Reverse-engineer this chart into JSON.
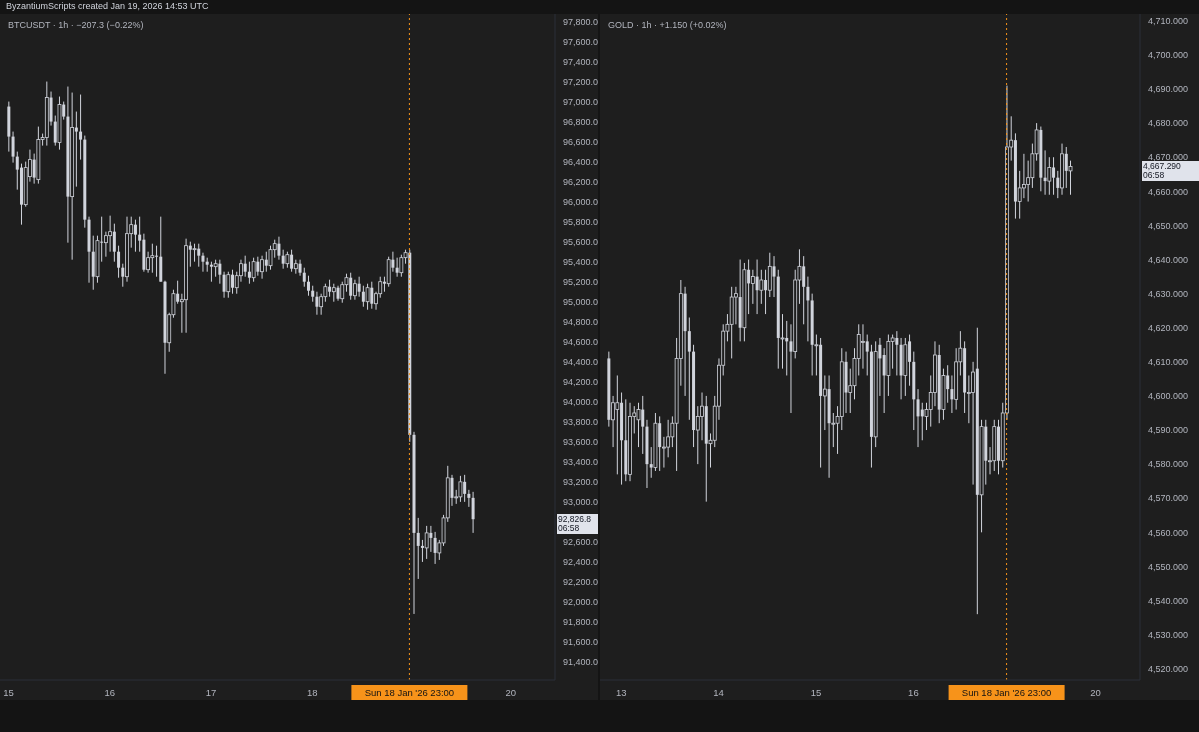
{
  "chart_data": [
    {
      "type": "candlestick",
      "title": "BTCUSDT · 1h · −207.3 (−0.22%)",
      "subtitle": "ByzantiumScripts created Jan 19, 2026 14:53 UTC",
      "color": "#d1d4dc",
      "categories": [
        "15",
        null,
        null,
        null,
        null,
        null,
        null,
        null,
        null,
        null,
        null,
        null,
        null,
        null,
        null,
        null,
        null,
        null,
        null,
        null,
        null,
        null,
        null,
        null,
        "16",
        null,
        null,
        null,
        null,
        null,
        null,
        null,
        null,
        null,
        null,
        null,
        null,
        null,
        null,
        null,
        null,
        null,
        null,
        null,
        null,
        null,
        null,
        null,
        "17",
        null,
        null,
        null,
        null,
        null,
        null,
        null,
        null,
        null,
        null,
        null,
        null,
        null,
        null,
        null,
        null,
        null,
        null,
        null,
        null,
        null,
        null,
        null,
        "18",
        null,
        null,
        null,
        null,
        null,
        null,
        null,
        null,
        null,
        null,
        null,
        null,
        null,
        null,
        null,
        null,
        null,
        null,
        null,
        null,
        null,
        null,
        "Sun 18 Jan '26 23:00",
        null,
        null,
        null,
        null,
        null,
        null,
        null,
        null,
        null,
        null,
        null,
        null,
        null,
        null,
        null,
        null,
        null,
        null,
        null,
        null,
        null,
        null,
        null,
        "20",
        null,
        null,
        null,
        null,
        null,
        null,
        null,
        null,
        null,
        null
      ],
      "ohlc": [
        [
          96950,
          97000,
          96500,
          96650
        ],
        [
          96650,
          96700,
          96390,
          96450
        ],
        [
          96450,
          96500,
          96120,
          96320
        ],
        [
          96340,
          96380,
          95770,
          95970
        ],
        [
          95970,
          96400,
          95950,
          96340
        ],
        [
          96250,
          96520,
          96200,
          96420
        ],
        [
          96420,
          96480,
          96180,
          96240
        ],
        [
          96220,
          96750,
          96180,
          96620
        ],
        [
          96620,
          96680,
          96560,
          96640
        ],
        [
          96640,
          97200,
          96560,
          97040
        ],
        [
          97040,
          97100,
          96760,
          96800
        ],
        [
          96800,
          96860,
          96560,
          96590
        ],
        [
          96590,
          97050,
          96520,
          96970
        ],
        [
          96970,
          97000,
          96820,
          96850
        ],
        [
          96850,
          97150,
          95590,
          96050
        ],
        [
          96050,
          97090,
          95420,
          96740
        ],
        [
          96740,
          96900,
          96150,
          96700
        ],
        [
          96700,
          97070,
          96420,
          96620
        ],
        [
          96620,
          96660,
          95740,
          95820
        ],
        [
          95820,
          95850,
          95190,
          95500
        ],
        [
          95500,
          95660,
          95120,
          95250
        ],
        [
          95250,
          95660,
          95190,
          95610
        ],
        [
          95600,
          95850,
          95400,
          95590
        ],
        [
          95590,
          95700,
          95450,
          95660
        ],
        [
          95660,
          95860,
          95500,
          95700
        ],
        [
          95700,
          95780,
          95400,
          95500
        ],
        [
          95500,
          95560,
          95240,
          95340
        ],
        [
          95340,
          95380,
          95150,
          95250
        ],
        [
          95250,
          95850,
          95200,
          95680
        ],
        [
          95680,
          95850,
          95540,
          95770
        ],
        [
          95770,
          95820,
          95500,
          95670
        ],
        [
          95670,
          95850,
          95500,
          95610
        ],
        [
          95620,
          95680,
          95300,
          95320
        ],
        [
          95320,
          95500,
          95290,
          95440
        ],
        [
          95440,
          95580,
          95290,
          95460
        ],
        [
          95460,
          95560,
          95250,
          95450
        ],
        [
          95450,
          95850,
          95200,
          95200
        ],
        [
          95200,
          95210,
          94280,
          94590
        ],
        [
          94590,
          94890,
          94500,
          94870
        ],
        [
          94870,
          95120,
          94840,
          95080
        ],
        [
          95080,
          95210,
          94980,
          95000
        ],
        [
          95000,
          95080,
          94690,
          95020
        ],
        [
          95020,
          95630,
          94690,
          95560
        ],
        [
          95560,
          95600,
          95350,
          95520
        ],
        [
          95520,
          95580,
          95400,
          95530
        ],
        [
          95530,
          95580,
          95350,
          95460
        ],
        [
          95460,
          95490,
          95300,
          95400
        ],
        [
          95400,
          95440,
          95300,
          95370
        ],
        [
          95370,
          95400,
          95200,
          95350
        ],
        [
          95350,
          95420,
          95250,
          95380
        ],
        [
          95380,
          95420,
          95180,
          95270
        ],
        [
          95270,
          95300,
          95040,
          95100
        ],
        [
          95100,
          95300,
          95040,
          95270
        ],
        [
          95270,
          95320,
          95080,
          95140
        ],
        [
          95140,
          95300,
          95080,
          95260
        ],
        [
          95260,
          95420,
          95200,
          95380
        ],
        [
          95380,
          95460,
          95250,
          95300
        ],
        [
          95300,
          95400,
          95180,
          95240
        ],
        [
          95240,
          95440,
          95200,
          95400
        ],
        [
          95400,
          95450,
          95260,
          95300
        ],
        [
          95300,
          95460,
          95230,
          95420
        ],
        [
          95420,
          95500,
          95300,
          95360
        ],
        [
          95360,
          95560,
          95320,
          95520
        ],
        [
          95520,
          95620,
          95440,
          95580
        ],
        [
          95580,
          95650,
          95420,
          95460
        ],
        [
          95460,
          95520,
          95330,
          95380
        ],
        [
          95380,
          95500,
          95340,
          95470
        ],
        [
          95470,
          95520,
          95300,
          95330
        ],
        [
          95330,
          95420,
          95280,
          95380
        ],
        [
          95380,
          95420,
          95260,
          95290
        ],
        [
          95290,
          95340,
          95150,
          95200
        ],
        [
          95200,
          95260,
          95060,
          95110
        ],
        [
          95110,
          95160,
          95000,
          95050
        ],
        [
          95050,
          95100,
          94870,
          94950
        ],
        [
          94950,
          95080,
          94870,
          95050
        ],
        [
          95050,
          95180,
          95000,
          95150
        ],
        [
          95150,
          95220,
          95050,
          95100
        ],
        [
          95100,
          95180,
          95000,
          95140
        ],
        [
          95140,
          95160,
          95010,
          95030
        ],
        [
          95030,
          95200,
          94990,
          95170
        ],
        [
          95170,
          95280,
          95100,
          95240
        ],
        [
          95240,
          95290,
          95020,
          95060
        ],
        [
          95060,
          95220,
          95020,
          95180
        ],
        [
          95180,
          95250,
          95050,
          95100
        ],
        [
          95100,
          95160,
          94950,
          95000
        ],
        [
          95000,
          95180,
          94920,
          95140
        ],
        [
          95140,
          95200,
          94930,
          94980
        ],
        [
          94980,
          95100,
          94920,
          95080
        ],
        [
          95080,
          95250,
          95040,
          95200
        ],
        [
          95200,
          95250,
          95100,
          95180
        ],
        [
          95180,
          95450,
          95150,
          95420
        ],
        [
          95420,
          95500,
          95300,
          95340
        ],
        [
          95340,
          95440,
          95250,
          95290
        ],
        [
          95290,
          95470,
          95250,
          95440
        ],
        [
          95440,
          95520,
          95380,
          95490
        ],
        [
          95490,
          95520,
          93600,
          93670
        ],
        [
          93670,
          93700,
          91880,
          92690
        ],
        [
          92690,
          92840,
          92230,
          92560
        ],
        [
          92560,
          92620,
          92400,
          92540
        ],
        [
          92540,
          92760,
          92430,
          92690
        ],
        [
          92690,
          92760,
          92500,
          92640
        ],
        [
          92640,
          92700,
          92380,
          92490
        ],
        [
          92490,
          92620,
          92420,
          92590
        ],
        [
          92590,
          92870,
          92560,
          92840
        ],
        [
          92840,
          93360,
          92800,
          93240
        ],
        [
          93240,
          93270,
          92960,
          93040
        ],
        [
          93040,
          93120,
          92980,
          93050
        ],
        [
          93050,
          93260,
          93000,
          93200
        ],
        [
          93200,
          93270,
          93000,
          93080
        ],
        [
          93080,
          93120,
          92950,
          93040
        ],
        [
          93040,
          93100,
          92690,
          92826.8
        ],
        null,
        null,
        null,
        null,
        null,
        null,
        null,
        null,
        null,
        null,
        null,
        null,
        null,
        null,
        null,
        null,
        null,
        null,
        null
      ],
      "ylim": [
        91220,
        97875
      ],
      "yticks": [
        {
          "value": 91400,
          "label": "91,400.0"
        },
        {
          "value": 91600,
          "label": "91,600.0"
        },
        {
          "value": 91800,
          "label": "91,800.0"
        },
        {
          "value": 92000,
          "label": "92,000.0"
        },
        {
          "value": 92200,
          "label": "92,200.0"
        },
        {
          "value": 92400,
          "label": "92,400.0"
        },
        {
          "value": 92600,
          "label": "92,600.0"
        },
        {
          "value": 93000,
          "label": "93,000.0"
        },
        {
          "value": 93200,
          "label": "93,200.0"
        },
        {
          "value": 93400,
          "label": "93,400.0"
        },
        {
          "value": 93600,
          "label": "93,600.0"
        },
        {
          "value": 93800,
          "label": "93,800.0"
        },
        {
          "value": 94000,
          "label": "94,000.0"
        },
        {
          "value": 94200,
          "label": "94,200.0"
        },
        {
          "value": 94400,
          "label": "94,400.0"
        },
        {
          "value": 94600,
          "label": "94,600.0"
        },
        {
          "value": 94800,
          "label": "94,800.0"
        },
        {
          "value": 95000,
          "label": "95,000.0"
        },
        {
          "value": 95200,
          "label": "95,200.0"
        },
        {
          "value": 95400,
          "label": "95,400.0"
        },
        {
          "value": 95600,
          "label": "95,600.0"
        },
        {
          "value": 95800,
          "label": "95,800.0"
        },
        {
          "value": 96000,
          "label": "96,000.0"
        },
        {
          "value": 96200,
          "label": "96,200.0"
        },
        {
          "value": 96400,
          "label": "96,400.0"
        },
        {
          "value": 96600,
          "label": "96,600.0"
        },
        {
          "value": 96800,
          "label": "96,800.0"
        },
        {
          "value": 97000,
          "label": "97,000.0"
        },
        {
          "value": 97200,
          "label": "97,200.0"
        },
        {
          "value": 97400,
          "label": "97,400.0"
        },
        {
          "value": 97600,
          "label": "97,600.0"
        },
        {
          "value": 97800,
          "label": "97,800.0"
        }
      ],
      "ref_lines": [
        {
          "axis": "x",
          "value": "Sun 18 Jan '26 23:00",
          "color": "#f7931a",
          "line_style": "dotted"
        }
      ],
      "annotations": [
        "92,826.8",
        "06:58"
      ]
    },
    {
      "type": "candlestick",
      "title": "GOLD · 1h · +1.150 (+0.02%)",
      "color": "#d1d4dc",
      "categories": [
        null,
        null,
        null,
        "13",
        null,
        null,
        null,
        null,
        null,
        null,
        null,
        null,
        null,
        null,
        null,
        null,
        null,
        null,
        null,
        null,
        null,
        null,
        null,
        null,
        null,
        null,
        "14",
        null,
        null,
        null,
        null,
        null,
        null,
        null,
        null,
        null,
        null,
        null,
        null,
        null,
        null,
        null,
        null,
        null,
        null,
        null,
        null,
        null,
        null,
        "15",
        null,
        null,
        null,
        null,
        null,
        null,
        null,
        null,
        null,
        null,
        null,
        null,
        null,
        null,
        null,
        null,
        null,
        null,
        null,
        null,
        null,
        null,
        "16",
        null,
        null,
        null,
        null,
        null,
        null,
        null,
        null,
        null,
        null,
        null,
        null,
        null,
        null,
        null,
        null,
        null,
        null,
        null,
        null,
        null,
        "Sun 18 Jan '26 23:00",
        null,
        null,
        null,
        null,
        null,
        null,
        null,
        null,
        null,
        null,
        null,
        null,
        null,
        null,
        null,
        null,
        null,
        null,
        null,
        null,
        "20",
        null,
        null,
        null,
        null,
        null,
        null,
        null,
        null,
        null,
        null
      ],
      "ohlc": [
        [
          4611,
          4613,
          4591,
          4593
        ],
        [
          4593,
          4600,
          4585,
          4598
        ],
        [
          4596,
          4606,
          4577,
          4598
        ],
        [
          4598,
          4601,
          4574,
          4587
        ],
        [
          4587,
          4599,
          4575,
          4577
        ],
        [
          4577,
          4598,
          4575,
          4594
        ],
        [
          4594,
          4597,
          4589,
          4595
        ],
        [
          4593,
          4598,
          4585,
          4596
        ],
        [
          4596,
          4600,
          4583,
          4591
        ],
        [
          4591,
          4593,
          4573,
          4580
        ],
        [
          4580,
          4585,
          4576,
          4579
        ],
        [
          4579,
          4595,
          4578,
          4592
        ],
        [
          4592,
          4594,
          4578,
          4585
        ],
        [
          4585,
          4588,
          4579,
          4585
        ],
        [
          4585,
          4593,
          4582,
          4588
        ],
        [
          4588,
          4594,
          4585,
          4592
        ],
        [
          4592,
          4617,
          4578,
          4611
        ],
        [
          4611,
          4634,
          4603,
          4630
        ],
        [
          4630,
          4632,
          4600,
          4619
        ],
        [
          4619,
          4623,
          4593,
          4613
        ],
        [
          4613,
          4615,
          4585,
          4590
        ],
        [
          4590,
          4597,
          4580,
          4594
        ],
        [
          4594,
          4601,
          4587,
          4597
        ],
        [
          4597,
          4600,
          4569,
          4586
        ],
        [
          4586,
          4589,
          4579,
          4587
        ],
        [
          4587,
          4600,
          4585,
          4597
        ],
        [
          4597,
          4611,
          4593,
          4609
        ],
        [
          4609,
          4621,
          4606,
          4619
        ],
        [
          4619,
          4624,
          4616,
          4621
        ],
        [
          4621,
          4632,
          4611,
          4629
        ],
        [
          4629,
          4632,
          4621,
          4630
        ],
        [
          4629,
          4640,
          4616,
          4620
        ],
        [
          4620,
          4639,
          4616,
          4637
        ],
        [
          4637,
          4640,
          4624,
          4633
        ],
        [
          4633,
          4637,
          4627,
          4635
        ],
        [
          4635,
          4640,
          4624,
          4631
        ],
        [
          4631,
          4637,
          4627,
          4634
        ],
        [
          4634,
          4637,
          4624,
          4631
        ],
        [
          4631,
          4642,
          4629,
          4638
        ],
        [
          4638,
          4641,
          4629,
          4635
        ],
        [
          4635,
          4637,
          4608,
          4617
        ],
        [
          4617,
          4624,
          4608,
          4617
        ],
        [
          4617,
          4622,
          4606,
          4616
        ],
        [
          4616,
          4621,
          4595,
          4613
        ],
        [
          4613,
          4637,
          4611,
          4634
        ],
        [
          4634,
          4643,
          4627,
          4638
        ],
        [
          4638,
          4641,
          4621,
          4632
        ],
        [
          4632,
          4635,
          4616,
          4628
        ],
        [
          4628,
          4630,
          4606,
          4615
        ],
        [
          4615,
          4618,
          4606,
          4615
        ],
        [
          4615,
          4617,
          4579,
          4600
        ],
        [
          4600,
          4606,
          4590,
          4602
        ],
        [
          4602,
          4606,
          4576,
          4592
        ],
        [
          4592,
          4595,
          4585,
          4592
        ],
        [
          4592,
          4597,
          4583,
          4594
        ],
        [
          4594,
          4614,
          4590,
          4610
        ],
        [
          4610,
          4613,
          4595,
          4601
        ],
        [
          4601,
          4608,
          4595,
          4603
        ],
        [
          4603,
          4614,
          4599,
          4611
        ],
        [
          4611,
          4621,
          4606,
          4618
        ],
        [
          4616,
          4621,
          4608,
          4616
        ],
        [
          4616,
          4618,
          4606,
          4613
        ],
        [
          4613,
          4615,
          4579,
          4588
        ],
        [
          4588,
          4616,
          4585,
          4613
        ],
        [
          4615,
          4617,
          4600,
          4611
        ],
        [
          4612,
          4614,
          4595,
          4606
        ],
        [
          4606,
          4618,
          4600,
          4616
        ],
        [
          4616,
          4618,
          4608,
          4617
        ],
        [
          4617,
          4619,
          4606,
          4615
        ],
        [
          4615,
          4617,
          4599,
          4606
        ],
        [
          4606,
          4617,
          4600,
          4615
        ],
        [
          4616,
          4618,
          4603,
          4610
        ],
        [
          4610,
          4613,
          4590,
          4599
        ],
        [
          4599,
          4602,
          4585,
          4594
        ],
        [
          4596,
          4598,
          4587,
          4594
        ],
        [
          4594,
          4598,
          4590,
          4596
        ],
        [
          4596,
          4606,
          4591,
          4601
        ],
        [
          4601,
          4616,
          4597,
          4612
        ],
        [
          4612,
          4615,
          4592,
          4596
        ],
        [
          4596,
          4608,
          4593,
          4606
        ],
        [
          4606,
          4609,
          4598,
          4602
        ],
        [
          4602,
          4606,
          4595,
          4599
        ],
        [
          4599,
          4614,
          4596,
          4610
        ],
        [
          4610,
          4619,
          4606,
          4614
        ],
        [
          4614,
          4616,
          4595,
          4601
        ],
        [
          4601,
          4606,
          4592,
          4601
        ],
        [
          4601,
          4610,
          4574,
          4607
        ],
        [
          4608,
          4620,
          4536,
          4571
        ],
        [
          4571,
          4593,
          4560,
          4591
        ],
        [
          4591,
          4593,
          4574,
          4581
        ],
        [
          4581,
          4585,
          4577,
          4581
        ],
        [
          4581,
          4593,
          4578,
          4591
        ],
        [
          4591,
          4593,
          4577,
          4581
        ],
        [
          4581,
          4598,
          4579,
          4595
        ],
        [
          4595,
          4691,
          4593,
          4673
        ],
        [
          4673,
          4682,
          4669,
          4675
        ],
        [
          4675,
          4677,
          4652,
          4657
        ],
        [
          4657,
          4666,
          4652,
          4661
        ],
        [
          4661,
          4671,
          4658,
          4662
        ],
        [
          4662,
          4669,
          4657,
          4664
        ],
        [
          4664,
          4674,
          4661,
          4671
        ],
        [
          4671,
          4680,
          4669,
          4678
        ],
        [
          4678,
          4679,
          4660,
          4664
        ],
        [
          4664,
          4672,
          4659,
          4663
        ],
        [
          4663,
          4670,
          4659,
          4667
        ],
        [
          4667,
          4670,
          4659,
          4664
        ],
        [
          4664,
          4666,
          4658,
          4661
        ],
        [
          4661,
          4674,
          4659,
          4671
        ],
        [
          4671,
          4673,
          4661,
          4666
        ],
        [
          4666,
          4669,
          4659,
          4667.29
        ],
        null,
        null,
        null,
        null,
        null,
        null,
        null,
        null,
        null,
        null,
        null,
        null,
        null,
        null,
        null,
        null
      ],
      "ylim": [
        4516.7,
        4712
      ],
      "yticks": [
        {
          "value": 4520,
          "label": "4,520.000"
        },
        {
          "value": 4530,
          "label": "4,530.000"
        },
        {
          "value": 4540,
          "label": "4,540.000"
        },
        {
          "value": 4550,
          "label": "4,550.000"
        },
        {
          "value": 4560,
          "label": "4,560.000"
        },
        {
          "value": 4570,
          "label": "4,570.000"
        },
        {
          "value": 4580,
          "label": "4,580.000"
        },
        {
          "value": 4590,
          "label": "4,590.000"
        },
        {
          "value": 4600,
          "label": "4,600.000"
        },
        {
          "value": 4610,
          "label": "4,610.000"
        },
        {
          "value": 4620,
          "label": "4,620.000"
        },
        {
          "value": 4630,
          "label": "4,630.000"
        },
        {
          "value": 4640,
          "label": "4,640.000"
        },
        {
          "value": 4650,
          "label": "4,650.000"
        },
        {
          "value": 4660,
          "label": "4,660.000"
        },
        {
          "value": 4670,
          "label": "4,670.000"
        },
        {
          "value": 4680,
          "label": "4,680.000"
        },
        {
          "value": 4690,
          "label": "4,690.000"
        },
        {
          "value": 4700,
          "label": "4,700.000"
        },
        {
          "value": 4710,
          "label": "4,710.000"
        }
      ],
      "ref_lines": [
        {
          "axis": "x",
          "value": "Sun 18 Jan '26 23:00",
          "color": "#f7931a",
          "line_style": "dotted"
        }
      ],
      "annotations": [
        "4,667.290",
        "06:58"
      ]
    }
  ]
}
